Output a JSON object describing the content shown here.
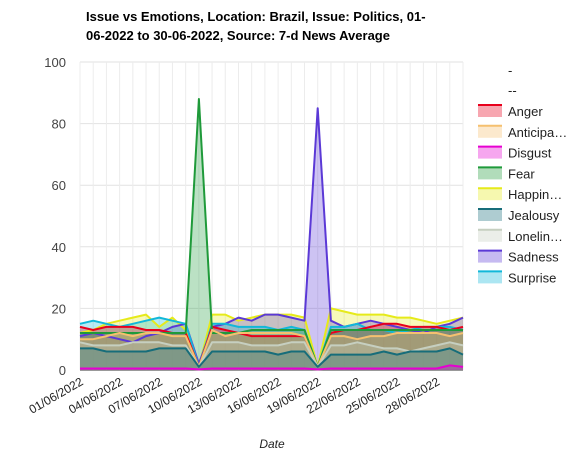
{
  "chart_data": {
    "type": "area",
    "title": "Issue vs Emotions, Location: Brazil, Issue: Politics, 01-06-2022 to 30-06-2022, Source: 7-d News Average",
    "xlabel": "Date",
    "ylabel": "",
    "ylim": [
      0,
      100
    ],
    "y_ticks": [
      0,
      20,
      40,
      60,
      80,
      100
    ],
    "x": [
      "01/06/2022",
      "02/06/2022",
      "03/06/2022",
      "04/06/2022",
      "05/06/2022",
      "06/06/2022",
      "07/06/2022",
      "08/06/2022",
      "09/06/2022",
      "10/06/2022",
      "11/06/2022",
      "12/06/2022",
      "13/06/2022",
      "14/06/2022",
      "15/06/2022",
      "16/06/2022",
      "17/06/2022",
      "18/06/2022",
      "19/06/2022",
      "20/06/2022",
      "21/06/2022",
      "22/06/2022",
      "23/06/2022",
      "24/06/2022",
      "25/06/2022",
      "26/06/2022",
      "27/06/2022",
      "28/06/2022",
      "29/06/2022",
      "30/06/2022"
    ],
    "x_tick_labels": [
      "01/06/2022",
      "04/06/2022",
      "07/06/2022",
      "10/06/2022",
      "13/06/2022",
      "16/06/2022",
      "19/06/2022",
      "22/06/2022",
      "25/06/2022",
      "28/06/2022"
    ],
    "grid": true,
    "legend_position": "right",
    "legend_header": [
      "-",
      "--"
    ],
    "series": [
      {
        "name": "Anger",
        "legend_label": "Anger",
        "color": "#e8001c",
        "values": [
          14,
          13,
          14,
          14,
          14,
          13,
          13,
          12,
          12,
          1,
          14,
          13,
          12,
          11,
          11,
          11,
          11,
          11,
          1,
          12,
          13,
          13,
          14,
          15,
          15,
          14,
          14,
          14,
          13,
          14
        ]
      },
      {
        "name": "Anticipation",
        "legend_label": "Anticipa…",
        "color": "#f5c06f",
        "values": [
          10,
          10,
          11,
          12,
          11,
          12,
          12,
          11,
          11,
          1,
          13,
          11,
          12,
          12,
          12,
          12,
          12,
          11,
          1,
          11,
          11,
          10,
          11,
          11,
          12,
          12,
          12,
          12,
          11,
          12
        ]
      },
      {
        "name": "Disgust",
        "legend_label": "Disgust",
        "color": "#e600d1",
        "values": [
          0.5,
          0.5,
          0.5,
          0.5,
          0.5,
          0.5,
          0.5,
          0.5,
          0.5,
          0.2,
          0.5,
          0.5,
          0.5,
          0.5,
          0.5,
          0.5,
          0.5,
          0.5,
          0.2,
          0.5,
          0.5,
          0.5,
          0.5,
          0.5,
          0.5,
          0.5,
          0.5,
          0.5,
          1.5,
          1
        ]
      },
      {
        "name": "Fear",
        "legend_label": "Fear",
        "color": "#1f9a3a",
        "values": [
          12,
          12,
          12,
          12,
          12,
          12,
          12,
          12,
          12,
          88,
          12,
          12,
          12,
          13,
          13,
          13,
          13,
          13,
          1,
          13,
          13,
          13,
          13,
          13,
          13,
          13,
          13,
          13,
          13,
          13
        ]
      },
      {
        "name": "Happiness",
        "legend_label": "Happin…",
        "color": "#e6ea1a",
        "values": [
          12,
          13,
          15,
          16,
          17,
          18,
          14,
          17,
          13,
          1,
          18,
          18,
          16,
          17,
          18,
          18,
          18,
          17,
          1,
          20,
          19,
          18,
          18,
          18,
          17,
          17,
          16,
          15,
          16,
          17
        ]
      },
      {
        "name": "Jealousy",
        "legend_label": "Jealousy",
        "color": "#176d7a",
        "values": [
          7,
          7,
          6,
          6,
          6,
          6,
          7,
          7,
          7,
          1,
          6,
          6,
          6,
          6,
          6,
          5,
          6,
          6,
          1,
          5,
          5,
          5,
          5,
          6,
          5,
          6,
          6,
          6,
          7,
          5
        ]
      },
      {
        "name": "Loneliness",
        "legend_label": "Lonelin…",
        "color": "#c6cfc0",
        "values": [
          9,
          8,
          8,
          8,
          9,
          9,
          9,
          8,
          8,
          1,
          9,
          9,
          9,
          8,
          8,
          8,
          9,
          9,
          1,
          8,
          8,
          9,
          8,
          7,
          7,
          6,
          7,
          8,
          9,
          8
        ]
      },
      {
        "name": "Sadness",
        "legend_label": "Sadness",
        "color": "#5b39d6",
        "values": [
          11,
          12,
          11,
          10,
          9,
          11,
          12,
          14,
          15,
          2,
          14,
          15,
          17,
          16,
          18,
          18,
          17,
          16,
          85,
          16,
          14,
          15,
          16,
          15,
          14,
          13,
          12,
          14,
          15,
          17
        ]
      },
      {
        "name": "Surprise",
        "legend_label": "Surprise",
        "color": "#11b8d9",
        "values": [
          15,
          16,
          15,
          14,
          15,
          16,
          17,
          16,
          15,
          1,
          15,
          15,
          14,
          14,
          14,
          13,
          14,
          13,
          1,
          14,
          14,
          15,
          13,
          13,
          12,
          13,
          14,
          14,
          14,
          13
        ]
      }
    ]
  }
}
